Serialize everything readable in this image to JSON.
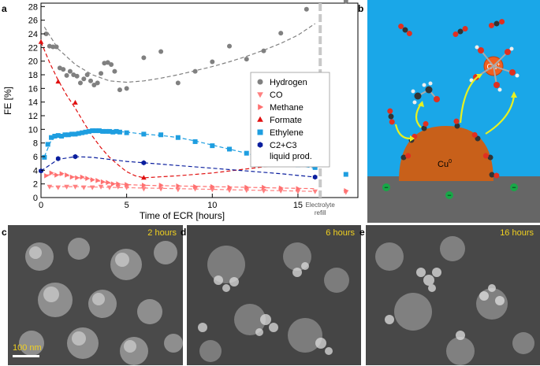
{
  "panels": {
    "a": "a",
    "b": "b",
    "c": "c",
    "d": "d",
    "e": "e"
  },
  "chart_data": {
    "type": "scatter",
    "xlabel": "Time of ECR [hours]",
    "ylabel": "FE [%]",
    "xlim": [
      0,
      18.5
    ],
    "ylim": [
      0,
      28.5
    ],
    "x_ticks": [
      0,
      5,
      10,
      15
    ],
    "y_ticks": [
      0,
      2,
      4,
      6,
      8,
      10,
      12,
      14,
      16,
      18,
      20,
      22,
      24,
      26,
      28
    ],
    "annotation": "Electrolyte refill",
    "annotation_x": 16.3,
    "legend_placement": "center-right",
    "series": [
      {
        "name": "Hydrogen",
        "color": "#808080",
        "marker": "circle",
        "x": [
          0.3,
          0.5,
          0.7,
          0.9,
          1.1,
          1.3,
          1.5,
          1.7,
          1.9,
          2.1,
          2.3,
          2.5,
          2.7,
          2.9,
          3.1,
          3.3,
          3.5,
          3.7,
          3.9,
          4.1,
          4.3,
          4.6,
          5.0,
          6.0,
          7.0,
          8.0,
          9.0,
          10.0,
          11.0,
          12.0,
          13.0,
          14.0,
          15.5,
          17.8
        ],
        "y": [
          24.0,
          22.2,
          22.1,
          22.1,
          19.0,
          18.8,
          17.9,
          18.5,
          18.0,
          17.8,
          16.8,
          17.4,
          18.0,
          17.1,
          16.5,
          16.8,
          18.2,
          19.7,
          19.8,
          19.5,
          18.5,
          15.8,
          16.0,
          20.5,
          21.4,
          16.8,
          18.5,
          19.9,
          22.2,
          20.3,
          21.5,
          24.1,
          27.6,
          28.8
        ]
      },
      {
        "name": "CO",
        "color": "#ff8080",
        "marker": "triangle-down",
        "x": [
          0.5,
          1.0,
          1.5,
          2.0,
          2.5,
          3.0,
          3.5,
          4.0,
          4.5,
          5.0,
          6.0,
          7.0,
          8.0,
          9.0,
          10.0,
          11.0,
          12.0,
          13.0,
          14.0,
          15.0,
          16.0,
          17.8
        ],
        "y": [
          1.6,
          1.5,
          1.6,
          1.6,
          1.5,
          1.5,
          1.6,
          1.5,
          1.6,
          1.5,
          1.3,
          1.3,
          1.2,
          1.3,
          1.2,
          1.1,
          1.1,
          1.0,
          1.0,
          0.9,
          0.9,
          0.8
        ]
      },
      {
        "name": "Methane",
        "color": "#ff7070",
        "marker": "triangle-right",
        "x": [
          0.3,
          0.6,
          0.9,
          1.2,
          1.5,
          1.8,
          2.1,
          2.4,
          2.7,
          3.0,
          3.3,
          3.6,
          3.9,
          4.2,
          4.5,
          5.0,
          6.0,
          7.0,
          8.0,
          9.0,
          10.0,
          11.0,
          12.0,
          13.0,
          14.0,
          15.0,
          17.8
        ],
        "y": [
          3.2,
          3.6,
          3.3,
          3.5,
          3.3,
          3.0,
          2.9,
          3.0,
          2.8,
          2.6,
          2.5,
          2.3,
          2.2,
          2.0,
          2.0,
          1.9,
          1.8,
          1.8,
          1.7,
          1.6,
          1.6,
          1.5,
          1.5,
          1.5,
          1.4,
          1.3,
          1.0
        ]
      },
      {
        "name": "Formate",
        "color": "#e01010",
        "marker": "triangle-up",
        "x": [
          0,
          1.0,
          2.0,
          6.0,
          16.0
        ],
        "y": [
          22.8,
          17.0,
          13.9,
          2.9,
          5.4
        ]
      },
      {
        "name": "Ethylene",
        "color": "#1e9ee0",
        "marker": "square",
        "x": [
          0.2,
          0.4,
          0.6,
          0.8,
          1.0,
          1.2,
          1.4,
          1.6,
          1.8,
          2.0,
          2.2,
          2.4,
          2.6,
          2.8,
          3.0,
          3.2,
          3.4,
          3.6,
          3.8,
          4.0,
          4.2,
          4.4,
          4.6,
          5.0,
          6.0,
          7.0,
          8.0,
          9.0,
          10.0,
          11.0,
          12.0,
          13.0,
          14.0,
          15.0,
          16.0,
          17.8
        ],
        "y": [
          5.9,
          7.8,
          8.8,
          9.0,
          9.1,
          9.0,
          9.2,
          9.2,
          9.3,
          9.3,
          9.4,
          9.5,
          9.6,
          9.7,
          9.8,
          9.8,
          9.8,
          9.7,
          9.7,
          9.7,
          9.6,
          9.7,
          9.6,
          9.5,
          9.3,
          9.2,
          8.8,
          8.2,
          7.6,
          7.1,
          6.5,
          5.7,
          5.0,
          4.8,
          4.4,
          3.4
        ]
      },
      {
        "name": "C2+C3 liquid prod.",
        "color": "#0a1e9e",
        "marker": "hexagon",
        "x": [
          0,
          1.0,
          2.0,
          6.0,
          16.0
        ],
        "y": [
          3.9,
          5.7,
          6.0,
          5.1,
          3.0
        ]
      }
    ],
    "fits": [
      {
        "series": "Hydrogen",
        "color": "#808080",
        "x": [
          0.2,
          1,
          2,
          3,
          4,
          5,
          6,
          7,
          8,
          9,
          10,
          11,
          12,
          13,
          14,
          15,
          16
        ],
        "y": [
          25.0,
          21.8,
          19.5,
          18.0,
          17.1,
          16.9,
          17.1,
          17.5,
          18.0,
          18.6,
          19.2,
          19.9,
          20.7,
          21.6,
          22.6,
          23.8,
          25.5
        ]
      },
      {
        "series": "Formate",
        "color": "#e01010",
        "x": [
          0,
          0.5,
          1,
          1.5,
          2,
          2.5,
          3,
          3.5,
          4,
          4.5,
          5,
          5.5,
          6,
          8,
          10,
          12,
          14,
          16
        ],
        "y": [
          22.8,
          19.8,
          17.2,
          15.0,
          13.1,
          11.0,
          9.0,
          7.3,
          5.9,
          4.8,
          3.8,
          3.2,
          2.9,
          3.2,
          3.6,
          4.2,
          4.8,
          5.4
        ]
      },
      {
        "series": "Ethylene",
        "color": "#1e9ee0",
        "x": [
          0.2,
          0.6,
          1,
          1.5,
          2,
          3,
          4,
          5,
          6,
          7,
          8,
          9,
          10,
          11,
          12,
          13,
          14,
          15,
          16
        ],
        "y": [
          6.0,
          8.4,
          9.1,
          9.3,
          9.4,
          9.7,
          9.7,
          9.6,
          9.3,
          9.1,
          8.8,
          8.3,
          7.7,
          7.1,
          6.5,
          5.8,
          5.2,
          4.7,
          4.3
        ]
      },
      {
        "series": "C2+C3 liquid prod.",
        "color": "#0a1e9e",
        "x": [
          0,
          1,
          2,
          3,
          4,
          5,
          6,
          8,
          10,
          12,
          14,
          16
        ],
        "y": [
          3.9,
          5.6,
          6.0,
          5.9,
          5.6,
          5.3,
          5.1,
          4.7,
          4.3,
          3.9,
          3.5,
          3.0
        ]
      },
      {
        "series": "Methane",
        "color": "#ff7070",
        "x": [
          0.3,
          1,
          2,
          3,
          4,
          5,
          6,
          8,
          10,
          12,
          14,
          16
        ],
        "y": [
          3.3,
          3.4,
          3.0,
          2.6,
          2.1,
          1.9,
          1.8,
          1.7,
          1.6,
          1.5,
          1.4,
          1.3
        ]
      },
      {
        "series": "CO",
        "color": "#ff8080",
        "x": [
          0.5,
          2,
          4,
          6,
          8,
          10,
          12,
          14,
          16
        ],
        "y": [
          1.6,
          1.6,
          1.5,
          1.4,
          1.3,
          1.2,
          1.1,
          1.0,
          0.9
        ]
      }
    ]
  },
  "schematic": {
    "particle_label": "Cu",
    "particle_sup": "0",
    "ion_label": "Cu",
    "ion_sup": "+",
    "bg_color": "#1aa7e8",
    "electrode_color": "#666666",
    "particle_color": "#c8601a"
  },
  "sem": [
    {
      "time": "2 hours",
      "scale": "100 nm"
    },
    {
      "time": "6 hours"
    },
    {
      "time": "16 hours"
    }
  ]
}
